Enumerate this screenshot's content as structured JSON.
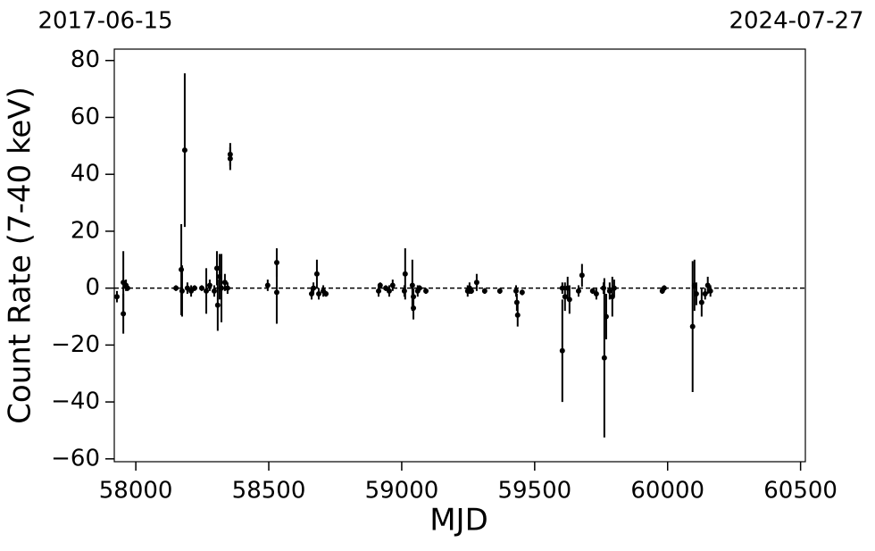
{
  "chart_data": {
    "type": "scatter",
    "x_label": "MJD",
    "y_label": "Count Rate (7-40 keV)",
    "top_left_label": "2017-06-15",
    "top_right_label": "2024-07-27",
    "xlim": [
      57919,
      60518
    ],
    "ylim": [
      -61,
      84
    ],
    "xticks": [
      58000,
      58500,
      59000,
      59500,
      60000,
      60500
    ],
    "yticks": [
      {
        "value": -60,
        "label": "−60"
      },
      {
        "value": -40,
        "label": "−40"
      },
      {
        "value": -20,
        "label": "−20"
      },
      0,
      20,
      40,
      60,
      80
    ],
    "reference_line": 0,
    "color": "#000000",
    "x": [
      57929,
      57953,
      57953,
      57963,
      57969,
      58151,
      58171,
      58174,
      58184,
      58194,
      58208,
      58221,
      58248,
      58265,
      58278,
      58295,
      58305,
      58308,
      58315,
      58322,
      58335,
      58345,
      58355,
      58355,
      58496,
      58530,
      58530,
      58661,
      58668,
      58681,
      58688,
      58705,
      58715,
      58913,
      58919,
      58940,
      58953,
      58966,
      59010,
      59013,
      59040,
      59044,
      59044,
      59060,
      59067,
      59091,
      59248,
      59255,
      59262,
      59282,
      59312,
      59369,
      59430,
      59433,
      59436,
      59453,
      59604,
      59604,
      59614,
      59624,
      59631,
      59665,
      59678,
      59718,
      59732,
      59759,
      59762,
      59769,
      59782,
      59792,
      59799,
      59980,
      59987,
      60094,
      60101,
      60108,
      60128,
      60141,
      60151,
      60161
    ],
    "y": [
      -3,
      -9,
      2,
      1,
      0,
      0,
      6.5,
      -1,
      48.5,
      0,
      -1,
      0,
      0,
      -1,
      1,
      -1,
      7,
      -6,
      4,
      0,
      2,
      0,
      47,
      45.5,
      1,
      9,
      -1.5,
      -2,
      0,
      5,
      -2,
      -1,
      -2,
      -1,
      1,
      0,
      -1,
      1,
      -1,
      5,
      1,
      -7,
      -3,
      -1,
      0,
      -1,
      -1,
      0,
      -1,
      2,
      -1,
      -1,
      -1,
      -5,
      -9.5,
      -1.5,
      0,
      -22,
      -3,
      0,
      -4,
      -1,
      4.5,
      -1,
      -2,
      0,
      -24.5,
      -10,
      -1,
      -3,
      0,
      -1,
      0,
      -13.5,
      1,
      -2,
      -5,
      -2,
      1,
      -1
    ],
    "errors": [
      2,
      7,
      11,
      2,
      1,
      1,
      16,
      9,
      27,
      2,
      2,
      1,
      1,
      8,
      2,
      2,
      6,
      9,
      8,
      12,
      3,
      2,
      4,
      4,
      2,
      5,
      11,
      2,
      2,
      5,
      2,
      2,
      1,
      2,
      1,
      1,
      2,
      2,
      2,
      9,
      9,
      4,
      3,
      2,
      1,
      1,
      2,
      2,
      1,
      3,
      1,
      1,
      2,
      3,
      4,
      1,
      2,
      18,
      5,
      4,
      5,
      2,
      4,
      1,
      2,
      2,
      28,
      8,
      3,
      7,
      3,
      1,
      1,
      23,
      9,
      4,
      5,
      2,
      3,
      2
    ]
  }
}
